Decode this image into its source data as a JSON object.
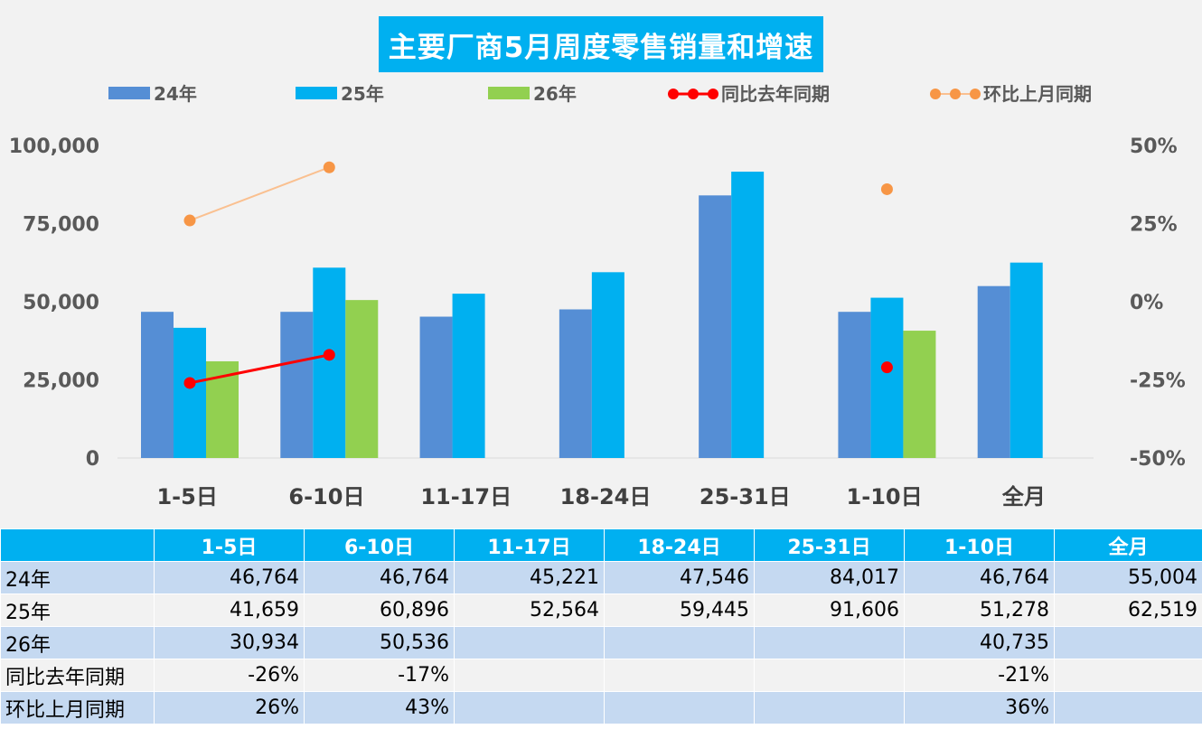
{
  "colors": {
    "title_bg": "#00b0f0",
    "bar_24": "#558ed5",
    "bar_25": "#00b0f0",
    "bar_26": "#92d050",
    "line_yoy": "#ff0000",
    "line_mom": "#fac090",
    "marker_mom": "#f79646",
    "header_bg": "#00b0f0",
    "row_odd": "#c5d9f1",
    "row_even": "#f2f2f2"
  },
  "chart_data": {
    "type": "bar",
    "title": "主要厂商5月周度零售销量和增速",
    "categories": [
      "1-5日",
      "6-10日",
      "11-17日",
      "18-24日",
      "25-31日",
      "1-10日",
      "全月"
    ],
    "series": [
      {
        "name": "24年",
        "kind": "bar",
        "axis": "left",
        "values": [
          46764,
          46764,
          45221,
          47546,
          84017,
          46764,
          55004
        ]
      },
      {
        "name": "25年",
        "kind": "bar",
        "axis": "left",
        "values": [
          41659,
          60896,
          52564,
          59445,
          91606,
          51278,
          62519
        ]
      },
      {
        "name": "26年",
        "kind": "bar",
        "axis": "left",
        "values": [
          30934,
          50536,
          null,
          null,
          null,
          40735,
          null
        ]
      },
      {
        "name": "同比去年同期",
        "kind": "line",
        "axis": "right",
        "values": [
          -0.26,
          -0.17,
          null,
          null,
          null,
          -0.21,
          null
        ]
      },
      {
        "name": "环比上月同期",
        "kind": "line",
        "axis": "right",
        "values": [
          0.26,
          0.43,
          null,
          null,
          null,
          0.36,
          null
        ]
      }
    ],
    "ylim": [
      0,
      100000
    ],
    "yticks": [
      "0",
      "25,000",
      "50,000",
      "75,000",
      "100,000"
    ],
    "y2lim": [
      -0.5,
      0.5
    ],
    "y2ticks": [
      "-50%",
      "-25%",
      "0%",
      "25%",
      "50%"
    ],
    "grid": false,
    "legend": "top"
  },
  "table": {
    "headers": [
      "",
      "1-5日",
      "6-10日",
      "11-17日",
      "18-24日",
      "25-31日",
      "1-10日",
      "全月"
    ],
    "rows": [
      {
        "label": "24年",
        "cells": [
          "46,764",
          "46,764",
          "45,221",
          "47,546",
          "84,017",
          "46,764",
          "55,004"
        ]
      },
      {
        "label": "25年",
        "cells": [
          "41,659",
          "60,896",
          "52,564",
          "59,445",
          "91,606",
          "51,278",
          "62,519"
        ]
      },
      {
        "label": "26年",
        "cells": [
          "30,934",
          "50,536",
          "",
          "",
          "",
          "40,735",
          ""
        ]
      },
      {
        "label": "同比去年同期",
        "cells": [
          "-26%",
          "-17%",
          "",
          "",
          "",
          "-21%",
          ""
        ]
      },
      {
        "label": "环比上月同期",
        "cells": [
          "26%",
          "43%",
          "",
          "",
          "",
          "36%",
          ""
        ]
      }
    ]
  }
}
